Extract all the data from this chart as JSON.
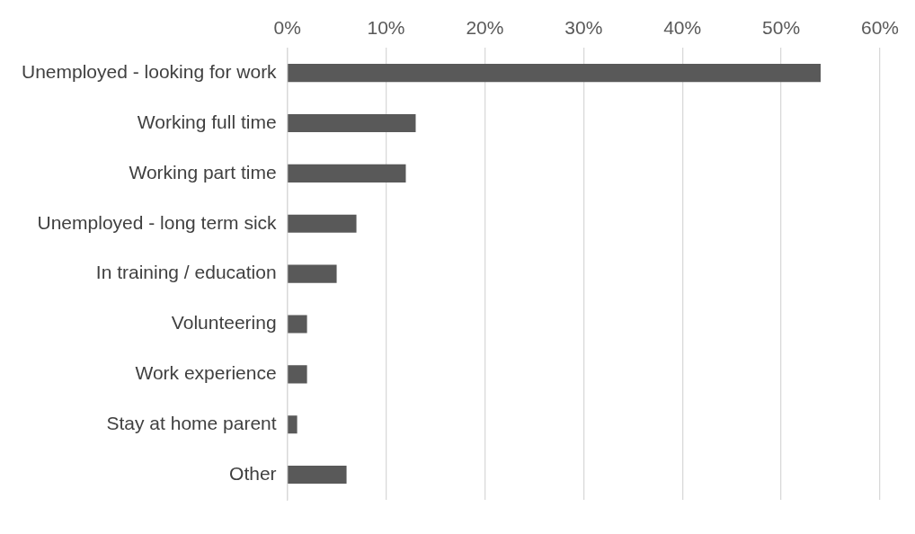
{
  "chart_data": {
    "type": "bar",
    "orientation": "horizontal",
    "categories": [
      "Unemployed - looking for work",
      "Working full time",
      "Working part time",
      "Unemployed - long term sick",
      "In training / education",
      "Volunteering",
      "Work experience",
      "Stay at home parent",
      "Other"
    ],
    "values": [
      54,
      13,
      12,
      7,
      5,
      2,
      2,
      1,
      6
    ],
    "color": "#595959",
    "xlim": [
      0,
      60
    ],
    "xticks": [
      {
        "value": 0,
        "label": "0%"
      },
      {
        "value": 10,
        "label": "10%"
      },
      {
        "value": 20,
        "label": "20%"
      },
      {
        "value": 30,
        "label": "30%"
      },
      {
        "value": 40,
        "label": "40%"
      },
      {
        "value": 50,
        "label": "50%"
      },
      {
        "value": 60,
        "label": "60%"
      }
    ],
    "grid": "x",
    "legend": false
  }
}
